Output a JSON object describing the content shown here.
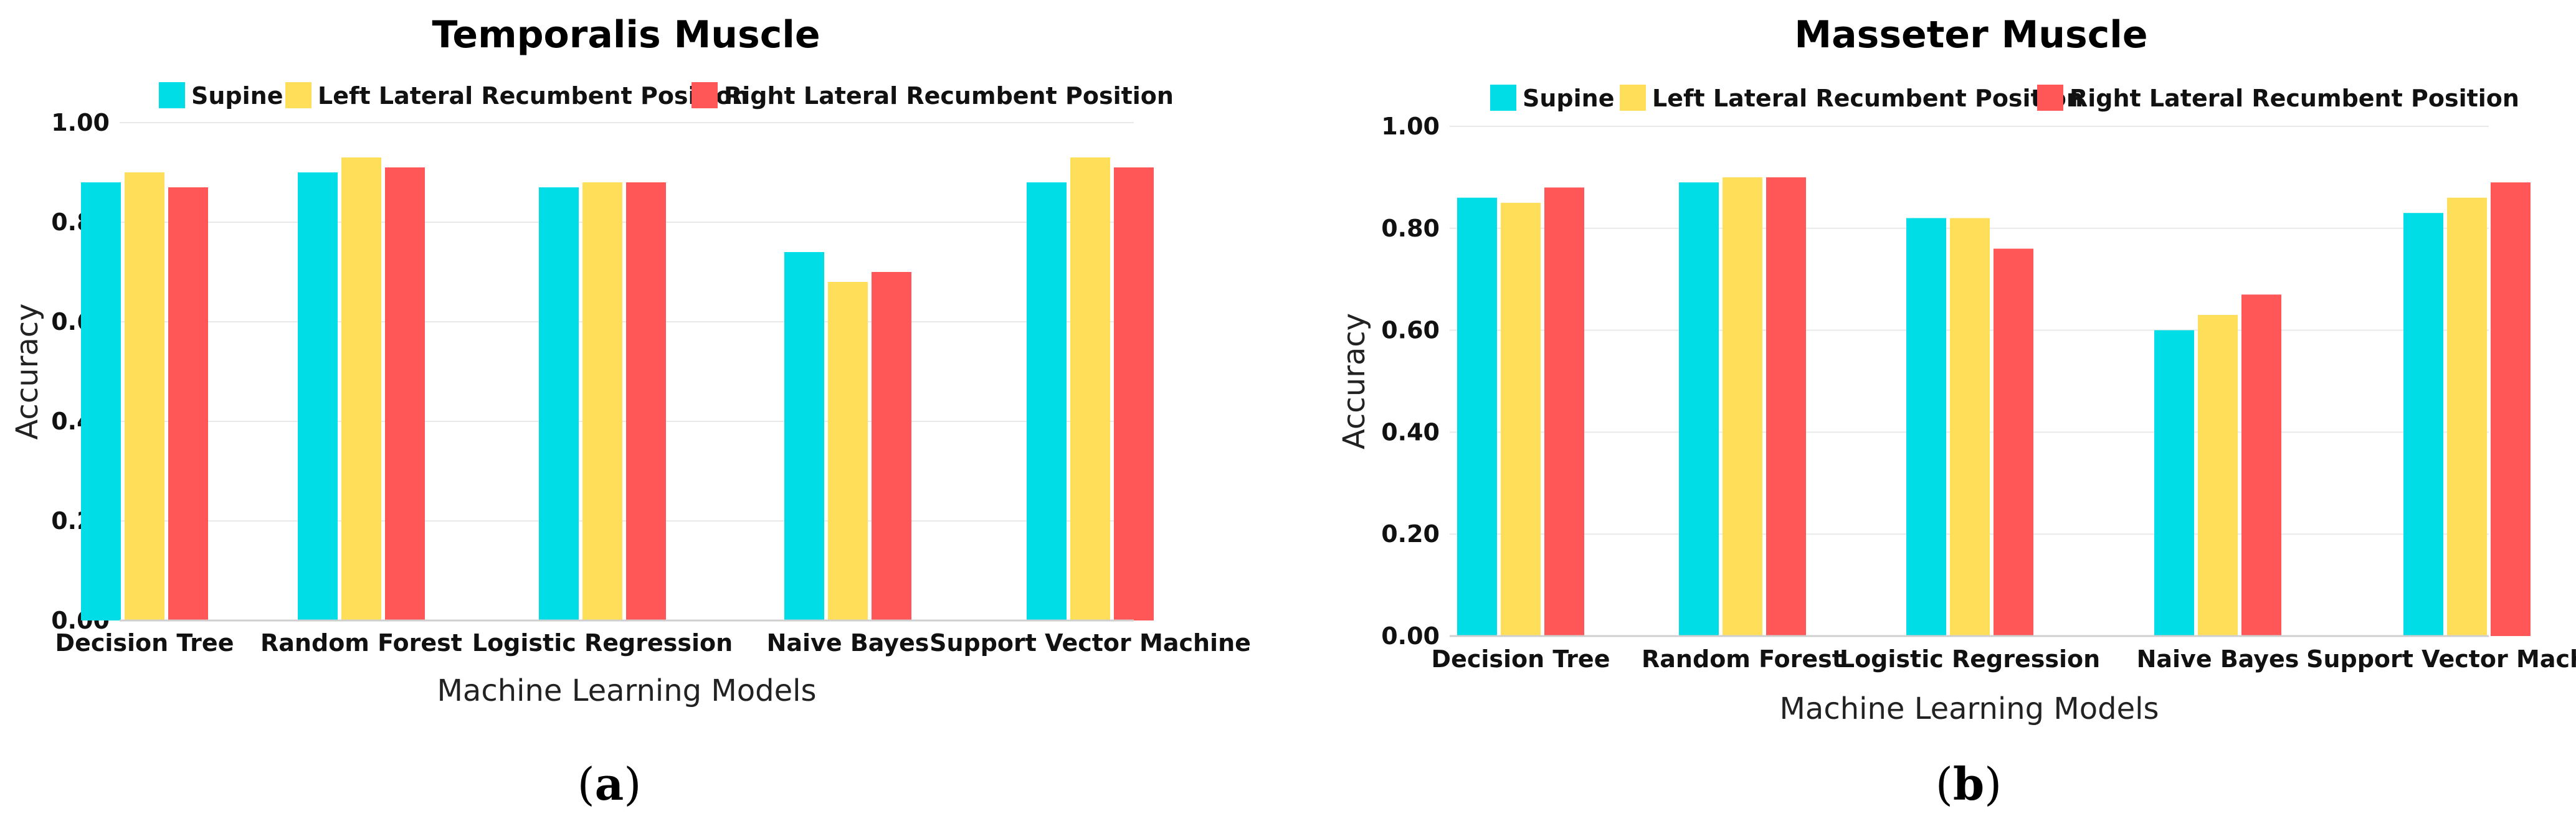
{
  "chart_data": [
    {
      "type": "bar",
      "title": "Temporalis Muscle",
      "xlabel": "Machine Learning Models",
      "ylabel": "Accuracy",
      "ylim": [
        0,
        1
      ],
      "yticks": [
        "0.00",
        "0.20",
        "0.40",
        "0.60",
        "0.80",
        "1.00"
      ],
      "grid": true,
      "legend_position": "top",
      "categories": [
        "Decision Tree",
        "Random Forest",
        "Logistic Regression",
        "Naive Bayes",
        "Support Vector Machine"
      ],
      "series": [
        {
          "name": "Supine",
          "color": "#00DDE6",
          "values": [
            0.88,
            0.9,
            0.87,
            0.74,
            0.88
          ]
        },
        {
          "name": "Left Lateral Recumbent Position",
          "color": "#FFDE59",
          "values": [
            0.9,
            0.93,
            0.88,
            0.68,
            0.93
          ]
        },
        {
          "name": "Right Lateral Recumbent Position",
          "color": "#FF5757",
          "values": [
            0.87,
            0.91,
            0.88,
            0.7,
            0.91
          ]
        }
      ],
      "caption_letter": "a"
    },
    {
      "type": "bar",
      "title": "Masseter Muscle",
      "xlabel": "Machine Learning Models",
      "ylabel": "Accuracy",
      "ylim": [
        0,
        1
      ],
      "yticks": [
        "0.00",
        "0.20",
        "0.40",
        "0.60",
        "0.80",
        "1.00"
      ],
      "grid": true,
      "legend_position": "top",
      "categories": [
        "Decision Tree",
        "Random Forest",
        "Logistic Regression",
        "Naive Bayes",
        "Support Vector Machine"
      ],
      "series": [
        {
          "name": "Supine",
          "color": "#00DDE6",
          "values": [
            0.86,
            0.89,
            0.82,
            0.6,
            0.83
          ]
        },
        {
          "name": "Left Lateral Recumbent Position",
          "color": "#FFDE59",
          "values": [
            0.85,
            0.9,
            0.82,
            0.63,
            0.86
          ]
        },
        {
          "name": "Right Lateral Recumbent Position",
          "color": "#FF5757",
          "values": [
            0.88,
            0.9,
            0.76,
            0.67,
            0.89
          ]
        }
      ],
      "caption_letter": "b"
    }
  ]
}
